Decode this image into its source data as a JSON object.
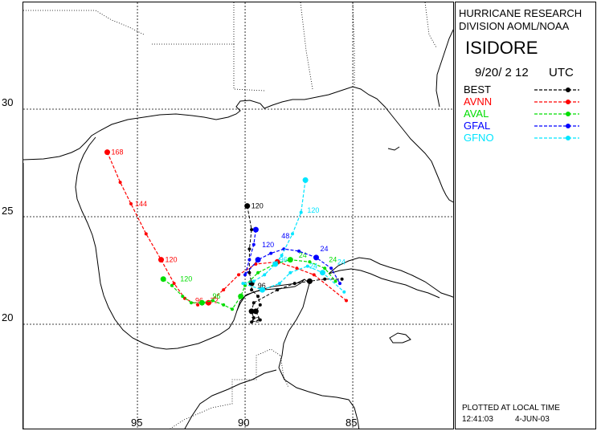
{
  "header": {
    "org_line1": "HURRICANE RESEARCH",
    "org_line2": "DIVISION AOML/NOAA",
    "storm_name": "ISIDORE",
    "datetime": "9/20/ 2 12",
    "utc": "UTC"
  },
  "legend": [
    {
      "name": "BEST",
      "color": "#000000"
    },
    {
      "name": "AVNN",
      "color": "#ff0000"
    },
    {
      "name": "AVAL",
      "color": "#00dd00"
    },
    {
      "name": "GFAL",
      "color": "#0000ff"
    },
    {
      "name": "GFNO",
      "color": "#00e5ff"
    }
  ],
  "footer": {
    "plotted_note": "PLOTTED AT LOCAL TIME",
    "time": "12:41:03",
    "date": "4-JUN-03"
  },
  "axes": {
    "lat_labels": [
      "30",
      "25",
      "20"
    ],
    "lon_labels": [
      "95",
      "90",
      "85"
    ]
  },
  "tracks": {
    "BEST": {
      "points": [
        [
          -89.9,
          25.5
        ],
        [
          -89.7,
          24.4
        ],
        [
          -89.8,
          23.5
        ],
        [
          -89.8,
          22.4
        ],
        [
          -89.7,
          21.9
        ],
        [
          -89.7,
          21.6
        ],
        [
          -89.4,
          21.3
        ],
        [
          -89.3,
          20.9
        ],
        [
          -89.5,
          20.6
        ],
        [
          -89.3,
          20.2
        ],
        [
          -89.7,
          20.1
        ],
        [
          -89.6,
          20.3
        ],
        [
          -89.7,
          20.6
        ],
        [
          -89.6,
          21.0
        ],
        [
          -88.5,
          21.6
        ],
        [
          -87.7,
          21.9
        ],
        [
          -87.0,
          22.0
        ],
        [
          -86.3,
          22.1
        ],
        [
          -85.5,
          22.1
        ]
      ],
      "labels": [
        {
          "text": "120",
          "lon": -89.9,
          "lat": 25.5
        },
        {
          "text": "72",
          "lon": -89.9,
          "lat": 20.2
        },
        {
          "text": "96",
          "lon": -89.6,
          "lat": 21.8
        }
      ]
    },
    "AVNN": {
      "points": [
        [
          -96.4,
          28.0
        ],
        [
          -95.8,
          26.6
        ],
        [
          -95.3,
          25.6
        ],
        [
          -94.6,
          24.2
        ],
        [
          -93.9,
          23.0
        ],
        [
          -93.3,
          21.9
        ],
        [
          -92.8,
          21.2
        ],
        [
          -92.2,
          20.9
        ],
        [
          -91.7,
          21.0
        ],
        [
          -91.0,
          21.6
        ],
        [
          -90.3,
          22.3
        ],
        [
          -89.5,
          22.8
        ],
        [
          -88.5,
          22.9
        ],
        [
          -87.6,
          22.6
        ],
        [
          -86.8,
          22.3
        ],
        [
          -85.3,
          21.1
        ]
      ],
      "labels": [
        {
          "text": "168",
          "lon": -96.4,
          "lat": 28.0
        },
        {
          "text": "144",
          "lon": -95.3,
          "lat": 25.6
        },
        {
          "text": "120",
          "lon": -93.9,
          "lat": 23.0
        },
        {
          "text": "96",
          "lon": -92.5,
          "lat": 21.1
        },
        {
          "text": "72",
          "lon": -91.8,
          "lat": 21.1
        }
      ]
    },
    "AVAL": {
      "points": [
        [
          -93.8,
          22.1
        ],
        [
          -93.4,
          21.8
        ],
        [
          -92.9,
          21.3
        ],
        [
          -92.5,
          21.0
        ],
        [
          -92.0,
          21.0
        ],
        [
          -91.5,
          21.1
        ],
        [
          -91.0,
          20.9
        ],
        [
          -90.6,
          20.7
        ],
        [
          -90.2,
          21.3
        ],
        [
          -90.0,
          21.8
        ],
        [
          -89.4,
          22.4
        ],
        [
          -88.6,
          22.8
        ],
        [
          -87.9,
          23.0
        ],
        [
          -87.0,
          22.9
        ],
        [
          -86.3,
          22.6
        ],
        [
          -85.8,
          22.0
        ]
      ],
      "labels": [
        {
          "text": "120",
          "lon": -93.2,
          "lat": 22.1
        },
        {
          "text": "96",
          "lon": -91.7,
          "lat": 21.3
        },
        {
          "text": "24",
          "lon": -87.7,
          "lat": 23.2
        },
        {
          "text": "24",
          "lon": -86.3,
          "lat": 23.0
        }
      ]
    },
    "GFAL": {
      "points": [
        [
          -89.5,
          24.4
        ],
        [
          -89.6,
          23.7
        ],
        [
          -89.8,
          23.0
        ],
        [
          -90.0,
          22.3
        ],
        [
          -89.4,
          23.0
        ],
        [
          -88.8,
          23.3
        ],
        [
          -88.2,
          23.5
        ],
        [
          -87.5,
          23.4
        ],
        [
          -86.7,
          23.1
        ],
        [
          -86.0,
          22.6
        ],
        [
          -85.6,
          21.9
        ]
      ],
      "labels": [
        {
          "text": "120",
          "lon": -89.4,
          "lat": 23.7
        },
        {
          "text": "48",
          "lon": -88.5,
          "lat": 24.1
        },
        {
          "text": "24",
          "lon": -86.7,
          "lat": 23.5
        }
      ]
    },
    "GFNO": {
      "points": [
        [
          -87.2,
          26.7
        ],
        [
          -87.4,
          25.2
        ],
        [
          -87.8,
          24.2
        ],
        [
          -88.3,
          23.2
        ],
        [
          -88.6,
          22.8
        ],
        [
          -89.1,
          22.3
        ],
        [
          -89.6,
          22.0
        ],
        [
          -90.1,
          21.9
        ],
        [
          -89.2,
          21.6
        ],
        [
          -88.4,
          21.9
        ],
        [
          -87.9,
          22.4
        ],
        [
          -87.1,
          22.7
        ],
        [
          -86.4,
          22.4
        ],
        [
          -85.4,
          21.5
        ]
      ],
      "labels": [
        {
          "text": "120",
          "lon": -87.3,
          "lat": 25.3
        },
        {
          "text": "96",
          "lon": -88.6,
          "lat": 23.0
        },
        {
          "text": "24",
          "lon": -85.9,
          "lat": 22.9
        },
        {
          "text": "24",
          "lon": -87.2,
          "lat": 22.7
        }
      ]
    }
  }
}
